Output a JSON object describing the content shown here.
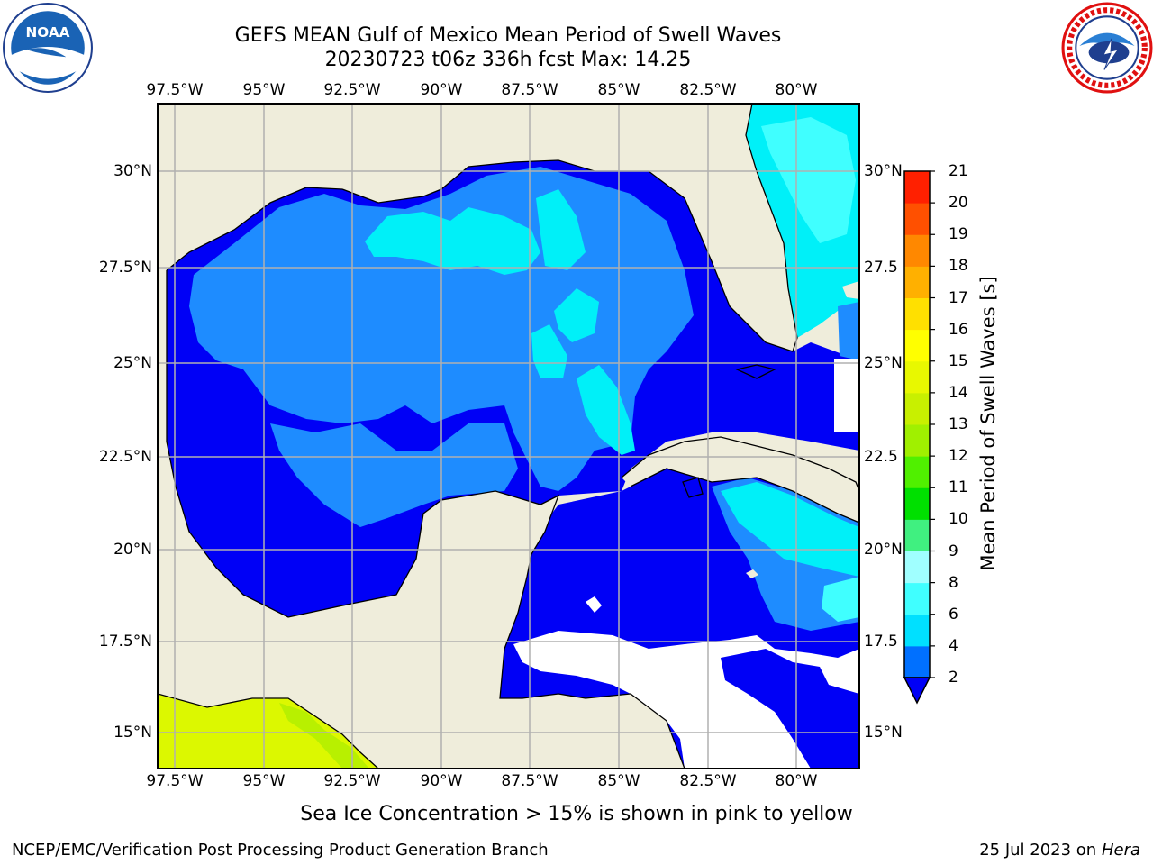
{
  "title_line1": "GEFS MEAN Gulf of Mexico Mean Period of Swell Waves",
  "title_line2": "20230723 t06z 336h fcst   Max: 14.25",
  "lon_labels": [
    "97.5°W",
    "95°W",
    "92.5°W",
    "90°W",
    "87.5°W",
    "85°W",
    "82.5°W",
    "80°W"
  ],
  "lat_labels_left": [
    "30°N",
    "27.5°N",
    "25°N",
    "22.5°N",
    "20°N",
    "17.5°N",
    "15°N"
  ],
  "lat_labels_right": [
    "30°N",
    "27.5",
    "25°N",
    "22.5",
    "20°N",
    "17.5",
    "15°N"
  ],
  "colorbar": {
    "title": "Mean Period of Swell Waves [s]",
    "levels": [
      "2",
      "4",
      "6",
      "8",
      "9",
      "10",
      "11",
      "12",
      "13",
      "14",
      "15",
      "16",
      "17",
      "18",
      "19",
      "20",
      "21"
    ],
    "colors": [
      "#0070ff",
      "#00e0ff",
      "#40ffff",
      "#a0ffff",
      "#40f080",
      "#00e000",
      "#50f000",
      "#a0f000",
      "#c8f000",
      "#e8f800",
      "#ffff00",
      "#ffe000",
      "#ffb000",
      "#ff8800",
      "#ff5000",
      "#ff2000"
    ]
  },
  "map_colors": {
    "land": "#efeddb",
    "band_2_4": "#0000f6",
    "band_4_6": "#1e8cff",
    "band_6_8": "#00f0f8",
    "band_8_9": "#40ffff",
    "ice": "#dcf800"
  },
  "ice_note": "Sea Ice Concentration > 15% is shown in pink to yellow",
  "footer_left": "NCEP/EMC/Verification Post Processing Product Generation Branch",
  "footer_right_date": "25 Jul 2023 on ",
  "footer_right_host": "Hera"
}
